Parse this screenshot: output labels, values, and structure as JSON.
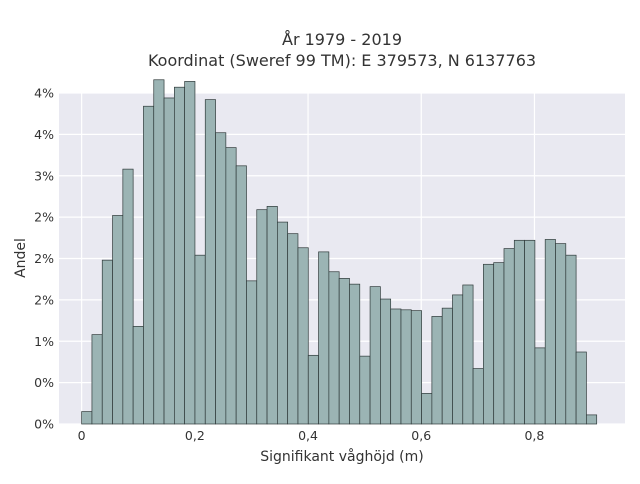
{
  "chart_data": {
    "type": "bar",
    "title_lines": [
      "År 1979 - 2019",
      "Koordinat (Sweref 99 TM): E 379573, N 6137763"
    ],
    "xlabel": "Signifikant våghöjd (m)",
    "ylabel": "Andel",
    "bin_width": 0.0182,
    "x_start": 0.0,
    "xlim": [
      -0.04,
      0.96
    ],
    "ylim": [
      0,
      0.04
    ],
    "x_ticks": [
      0,
      0.2,
      0.4,
      0.6,
      0.8
    ],
    "x_tick_labels": [
      "0",
      "0,2",
      "0,4",
      "0,6",
      "0,8"
    ],
    "y_ticks": [
      0,
      0.005,
      0.01,
      0.015,
      0.02,
      0.025,
      0.03,
      0.035,
      0.04
    ],
    "y_tick_labels": [
      "0%",
      "0%",
      "1%",
      "2%",
      "2%",
      "2%",
      "3%",
      "4%",
      "4%"
    ],
    "grid": true,
    "bar_color": "#9bb4b4",
    "plot_background": "#e9e9f1",
    "values": [
      0.0015,
      0.0108,
      0.0198,
      0.0252,
      0.0308,
      0.0118,
      0.0384,
      0.0416,
      0.0394,
      0.0407,
      0.0414,
      0.0204,
      0.0392,
      0.0352,
      0.0334,
      0.0312,
      0.0173,
      0.0259,
      0.0263,
      0.0244,
      0.023,
      0.0213,
      0.0083,
      0.0208,
      0.0184,
      0.0176,
      0.0169,
      0.0082,
      0.0166,
      0.0151,
      0.0139,
      0.0138,
      0.0137,
      0.0037,
      0.013,
      0.014,
      0.0156,
      0.0168,
      0.0067,
      0.0193,
      0.0195,
      0.0212,
      0.0222,
      0.0222,
      0.0092,
      0.0223,
      0.0218,
      0.0204,
      0.0087,
      0.0011
    ]
  }
}
